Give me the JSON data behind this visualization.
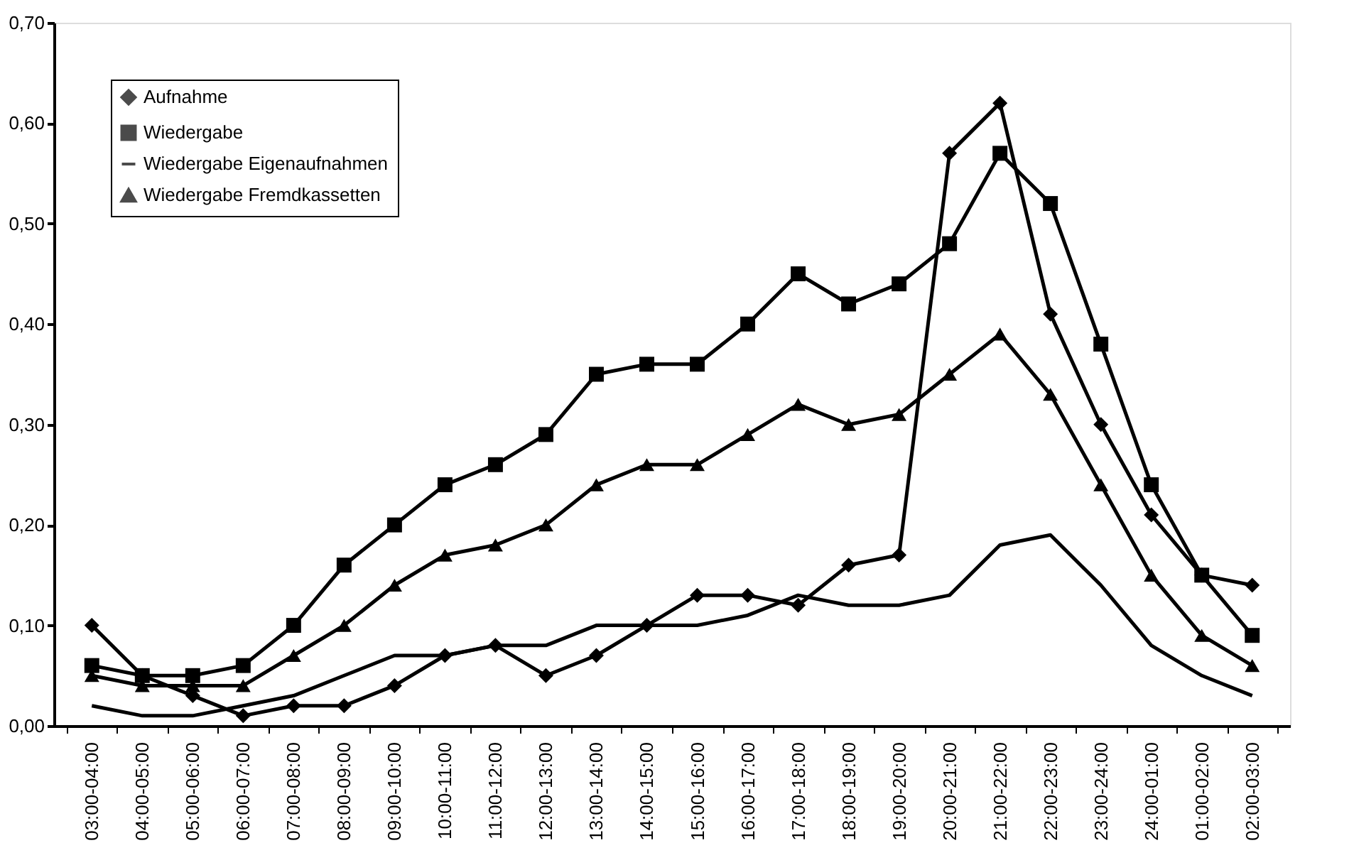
{
  "chart_data": {
    "type": "line",
    "categories": [
      "03:00-04:00",
      "04:00-05:00",
      "05:00-06:00",
      "06:00-07:00",
      "07:00-08:00",
      "08:00-09:00",
      "09:00-10:00",
      "10:00-11:00",
      "11:00-12:00",
      "12:00-13:00",
      "13:00-14:00",
      "14:00-15:00",
      "15:00-16:00",
      "16:00-17:00",
      "17:00-18:00",
      "18:00-19:00",
      "19:00-20:00",
      "20:00-21:00",
      "21:00-22:00",
      "22:00-23:00",
      "23:00-24:00",
      "24:00-01:00",
      "01:00-02:00",
      "02:00-03:00"
    ],
    "series": [
      {
        "name": "Aufnahme",
        "color": "#000000",
        "marker": "diamond",
        "values": [
          0.1,
          0.05,
          0.03,
          0.01,
          0.02,
          0.02,
          0.04,
          0.07,
          0.08,
          0.05,
          0.07,
          0.1,
          0.13,
          0.13,
          0.12,
          0.16,
          0.17,
          0.57,
          0.62,
          0.41,
          0.3,
          0.21,
          0.15,
          0.14
        ]
      },
      {
        "name": "Wiedergabe",
        "color": "#000000",
        "marker": "square",
        "values": [
          0.06,
          0.05,
          0.05,
          0.06,
          0.1,
          0.16,
          0.2,
          0.24,
          0.26,
          0.29,
          0.35,
          0.36,
          0.36,
          0.4,
          0.45,
          0.42,
          0.44,
          0.48,
          0.57,
          0.52,
          0.38,
          0.24,
          0.15,
          0.09
        ]
      },
      {
        "name": "Wiedergabe Eigenaufnahmen",
        "color": "#000000",
        "marker": "none",
        "values": [
          0.02,
          0.01,
          0.01,
          0.02,
          0.03,
          0.05,
          0.07,
          0.07,
          0.08,
          0.08,
          0.1,
          0.1,
          0.1,
          0.11,
          0.13,
          0.12,
          0.12,
          0.13,
          0.18,
          0.19,
          0.14,
          0.08,
          0.05,
          0.03
        ]
      },
      {
        "name": "Wiedergabe Fremdkassetten",
        "color": "#000000",
        "marker": "triangle",
        "values": [
          0.05,
          0.04,
          0.04,
          0.04,
          0.07,
          0.1,
          0.14,
          0.17,
          0.18,
          0.2,
          0.24,
          0.26,
          0.26,
          0.29,
          0.32,
          0.3,
          0.31,
          0.35,
          0.39,
          0.33,
          0.24,
          0.15,
          0.09,
          0.06
        ]
      }
    ],
    "ylim": [
      0,
      0.7
    ],
    "yticks": [
      {
        "value": 0,
        "label": "0,00"
      },
      {
        "value": 0.1,
        "label": "0,10"
      },
      {
        "value": 0.2,
        "label": "0,20"
      },
      {
        "value": 0.3,
        "label": "0,30"
      },
      {
        "value": 0.4,
        "label": "0,40"
      },
      {
        "value": 0.5,
        "label": "0,50"
      },
      {
        "value": 0.6,
        "label": "0,60"
      },
      {
        "value": 0.7,
        "label": "0,70"
      }
    ],
    "grid": false,
    "legend": "top left",
    "line_style": "solid"
  }
}
